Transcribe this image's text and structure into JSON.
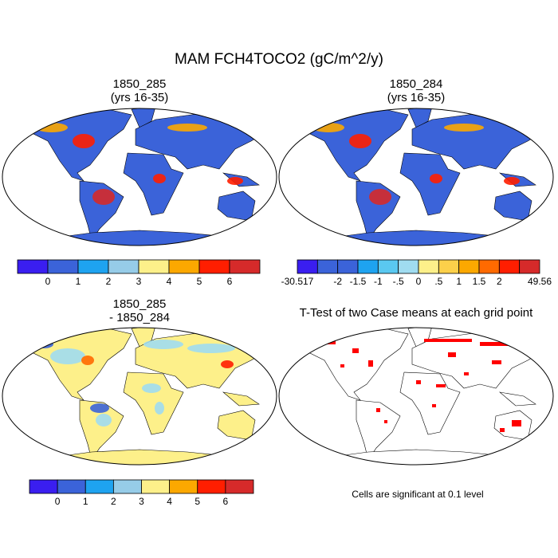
{
  "title": "MAM FCH4TOCO2 (gC/m^2/y)",
  "panels": [
    {
      "title": "1850_285",
      "subtitle": "(yrs 16-35)"
    },
    {
      "title": "1850_284",
      "subtitle": "(yrs 16-35)"
    },
    {
      "title": "1850_285",
      "subtitle": "- 1850_284"
    },
    {
      "title": "T-Test of two Case means at each grid point"
    }
  ],
  "colorbars": [
    {
      "colors": [
        "#3a1ef0",
        "#3b63d9",
        "#1ea3f0",
        "#96cce8",
        "#fdf08a",
        "#fca800",
        "#ff1e00",
        "#d62a2a"
      ],
      "labels": [
        null,
        "0",
        "1",
        "2",
        "3",
        "4",
        "5",
        "6",
        null
      ]
    },
    {
      "colors": [
        "#3a1ef0",
        "#3b63d9",
        "#3b63d9",
        "#1ea3f0",
        "#5ac8f0",
        "#a0dcf0",
        "#fdf08a",
        "#fcd04a",
        "#fca800",
        "#ff6a00",
        "#ff1e00",
        "#d62a2a"
      ],
      "labels": [
        "-30.517",
        null,
        "-2",
        "-1.5",
        "-1",
        "-.5",
        "0",
        ".5",
        "1",
        "1.5",
        "2",
        null,
        "49.56"
      ]
    },
    {
      "colors": [
        "#3a1ef0",
        "#3b63d9",
        "#1ea3f0",
        "#96cce8",
        "#fdf08a",
        "#fca800",
        "#ff1e00",
        "#d62a2a"
      ],
      "labels": [
        null,
        "0",
        "1",
        "2",
        "3",
        "4",
        "5",
        "6",
        null
      ]
    }
  ],
  "note": "Cells are significant at 0.1 level"
}
